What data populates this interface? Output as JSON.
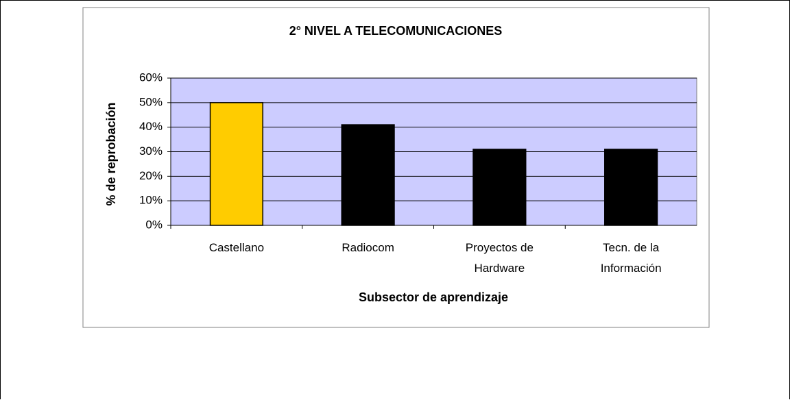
{
  "chart_data": {
    "type": "bar",
    "title": "2° NIVEL A TELECOMUNICACIONES",
    "x_label": "Subsector de aprendizaje",
    "y_label": "% de reprobación",
    "categories": [
      "Castellano",
      "Radiocom",
      "Proyectos de Hardware",
      "Tecn. de la Información"
    ],
    "values": [
      50,
      41,
      31,
      31
    ],
    "colors": [
      "#ffcc00",
      "#000000",
      "#000000",
      "#000000"
    ],
    "plot_background": "#ccccff",
    "ylim": [
      0,
      60
    ],
    "yticks": [
      {
        "value": 0,
        "label": "0%"
      },
      {
        "value": 10,
        "label": "10%"
      },
      {
        "value": 20,
        "label": "20%"
      },
      {
        "value": 30,
        "label": "30%"
      },
      {
        "value": 40,
        "label": "40%"
      },
      {
        "value": 50,
        "label": "50%"
      },
      {
        "value": 60,
        "label": "60%"
      }
    ],
    "grid": true
  }
}
